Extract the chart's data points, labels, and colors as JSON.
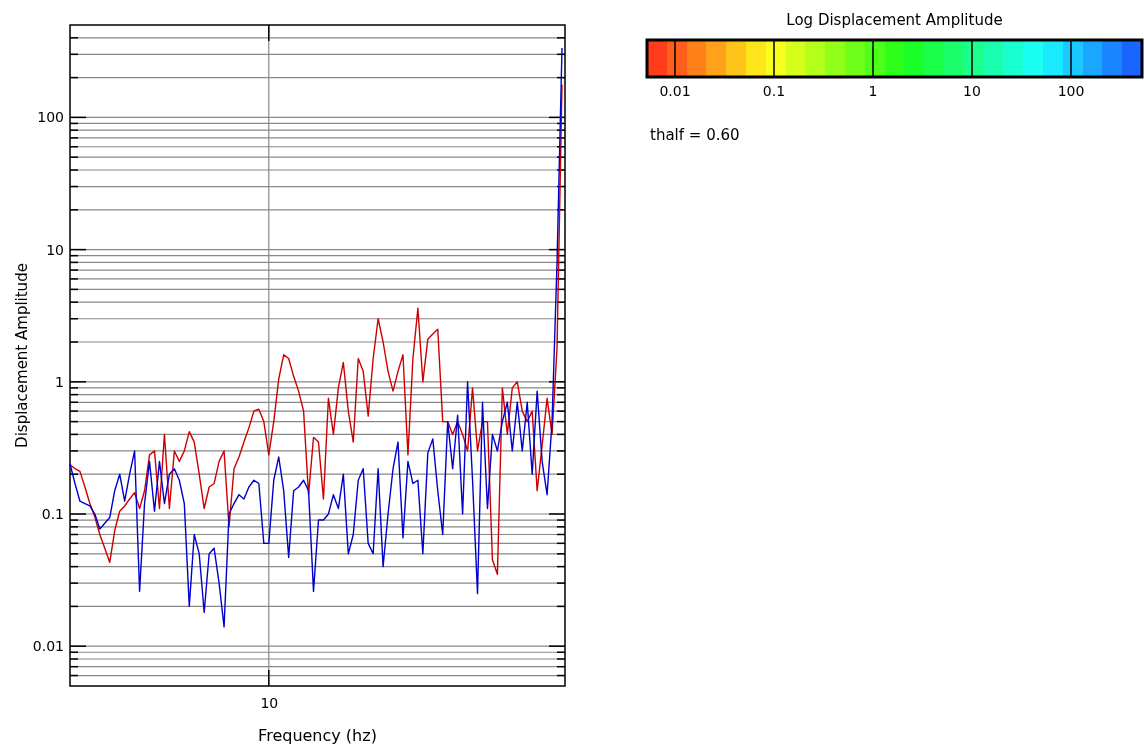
{
  "chart_data": [
    {
      "type": "line",
      "xlabel": "Frequency (hz)",
      "ylabel": "Displacement Amplitude",
      "log": "y",
      "grid": true,
      "line_style": "solid",
      "categories": [
        null,
        null,
        null,
        null,
        null,
        null,
        null,
        null,
        null,
        null,
        null,
        null,
        null,
        null,
        null,
        null,
        null,
        null,
        null,
        null,
        null,
        null,
        null,
        null,
        null,
        null,
        null,
        null,
        null,
        null,
        null,
        null,
        null,
        null,
        null,
        null,
        null,
        null,
        null,
        null,
        "10",
        null,
        null,
        null,
        null,
        null,
        null,
        null,
        null,
        null,
        null,
        null,
        null,
        null,
        null,
        null,
        null,
        null,
        null,
        null,
        null,
        null,
        null,
        null,
        null,
        null,
        null,
        null,
        null,
        null,
        null,
        null,
        null,
        null,
        null,
        null,
        null,
        null,
        null,
        null,
        null,
        null,
        null,
        null,
        null,
        null,
        null,
        null,
        null,
        null,
        null,
        null,
        null,
        null,
        null,
        null,
        null,
        null,
        null,
        null
      ],
      "ylim": [
        0.005,
        500
      ],
      "yticks": [
        0.01,
        0.1,
        1,
        10,
        100
      ],
      "series": [
        {
          "color": "#cc0000",
          "values": [
            0.237,
            0.22,
            0.21,
            0.16,
            0.12,
            0.095,
            0.07,
            0.055,
            0.043,
            0.075,
            0.105,
            0.115,
            0.13,
            0.145,
            0.11,
            0.15,
            0.28,
            0.3,
            0.11,
            0.4,
            0.11,
            0.3,
            0.25,
            0.3,
            0.42,
            0.35,
            0.2,
            0.11,
            0.16,
            0.17,
            0.25,
            0.3,
            0.08,
            0.22,
            0.27,
            0.35,
            0.45,
            0.6,
            0.62,
            0.5,
            0.28,
            0.5,
            1.05,
            1.6,
            1.5,
            1.1,
            0.85,
            0.6,
            0.14,
            0.38,
            0.35,
            0.13,
            0.75,
            0.4,
            0.9,
            1.4,
            0.6,
            0.35,
            1.5,
            1.2,
            0.55,
            1.5,
            3.0,
            2.0,
            1.2,
            0.85,
            1.2,
            1.6,
            0.28,
            1.5,
            3.6,
            1.0,
            2.1,
            2.3,
            2.5,
            0.5,
            0.5,
            0.4,
            0.5,
            0.4,
            0.3,
            0.9,
            0.3,
            0.5,
            0.5,
            0.045,
            0.035,
            0.9,
            0.4,
            0.9,
            1.0,
            0.6,
            0.5,
            0.6,
            0.15,
            0.33,
            0.75,
            0.4,
            1.8,
            177
          ]
        },
        {
          "color": "#0000cc",
          "values": [
            0.24,
            0.17,
            0.125,
            0.12,
            0.115,
            0.1,
            0.077,
            0.085,
            0.094,
            0.15,
            0.2,
            0.125,
            0.2,
            0.3,
            0.026,
            0.12,
            0.25,
            0.105,
            0.25,
            0.12,
            0.2,
            0.22,
            0.18,
            0.12,
            0.02,
            0.07,
            0.05,
            0.018,
            0.05,
            0.055,
            0.03,
            0.014,
            0.1,
            0.12,
            0.14,
            0.13,
            0.16,
            0.18,
            0.17,
            0.06,
            0.06,
            0.18,
            0.27,
            0.15,
            0.047,
            0.15,
            0.16,
            0.18,
            0.15,
            0.026,
            0.09,
            0.09,
            0.1,
            0.14,
            0.11,
            0.2,
            0.05,
            0.07,
            0.18,
            0.22,
            0.06,
            0.05,
            0.22,
            0.04,
            0.1,
            0.22,
            0.35,
            0.066,
            0.25,
            0.17,
            0.18,
            0.05,
            0.29,
            0.37,
            0.15,
            0.07,
            0.5,
            0.22,
            0.56,
            0.1,
            1.0,
            0.18,
            0.025,
            0.7,
            0.11,
            0.4,
            0.3,
            0.5,
            0.7,
            0.3,
            0.7,
            0.3,
            0.7,
            0.2,
            0.85,
            0.25,
            0.14,
            0.5,
            8,
            335
          ]
        }
      ]
    },
    {
      "type": "other",
      "title": "Log Displacement Amplitude",
      "categories": [
        "0.01",
        "0.1",
        "1",
        "10",
        "100"
      ],
      "annotations": [
        "thalf = 0.60"
      ]
    }
  ]
}
